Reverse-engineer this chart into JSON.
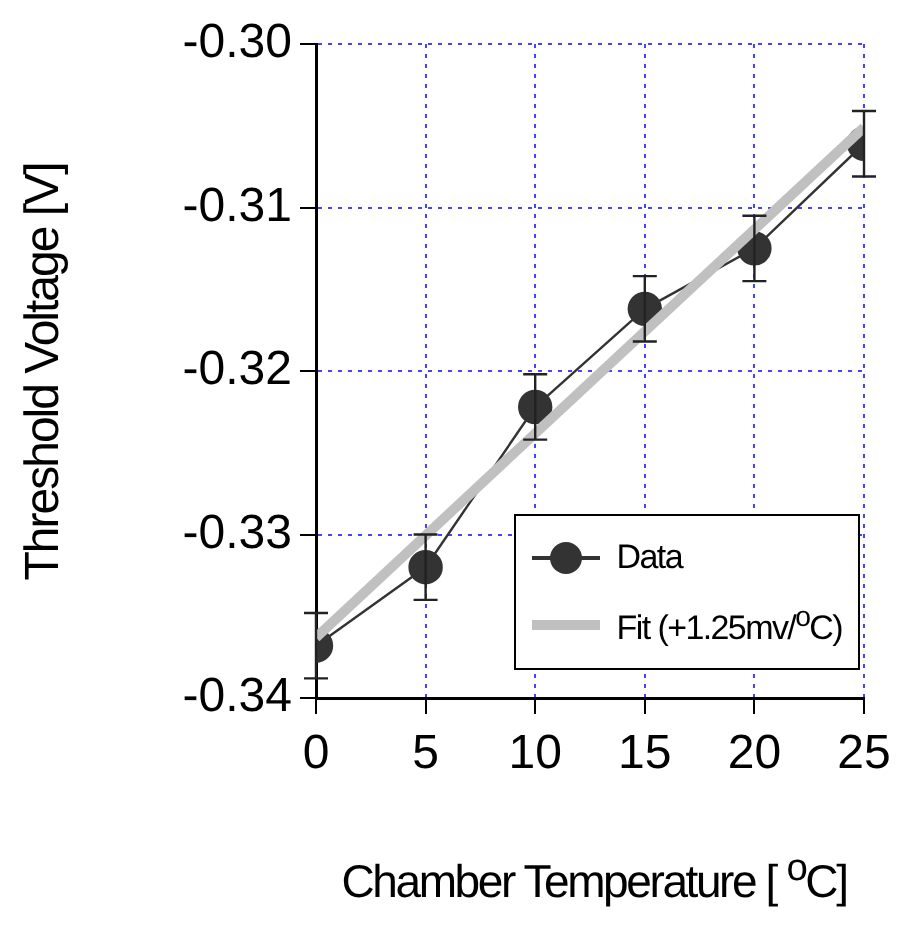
{
  "chart_data": {
    "type": "line",
    "xlabel": "Chamber Temperature [ $^{o}$C]",
    "ylabel": "Threshold Voltage [V]",
    "x": [
      0,
      5,
      10,
      15,
      20,
      25
    ],
    "series": [
      {
        "name": "Data",
        "color": "#333333",
        "marker": "circle",
        "values": [
          -0.3368,
          -0.332,
          -0.3222,
          -0.3162,
          -0.3125,
          -0.3061
        ],
        "errors": [
          0.002,
          0.002,
          0.002,
          0.002,
          0.002,
          0.002
        ]
      },
      {
        "name": "Fit (+1.25mv/$^{o}$C)",
        "type": "line",
        "color": "#c0c0c0",
        "marker": "none",
        "x": [
          0,
          25
        ],
        "values": [
          -0.3363,
          -0.3051
        ]
      }
    ],
    "xlim": [
      0,
      25
    ],
    "xticks": [
      0,
      5,
      10,
      15,
      20,
      25
    ],
    "ylim": [
      -0.34,
      -0.3
    ],
    "yticks": [
      {
        "value": -0.34,
        "label": "-0.34"
      },
      -0.33,
      -0.32,
      -0.31,
      {
        "value": -0.3,
        "label": "-0.30"
      }
    ],
    "grid": true,
    "legend": "bottom right"
  }
}
